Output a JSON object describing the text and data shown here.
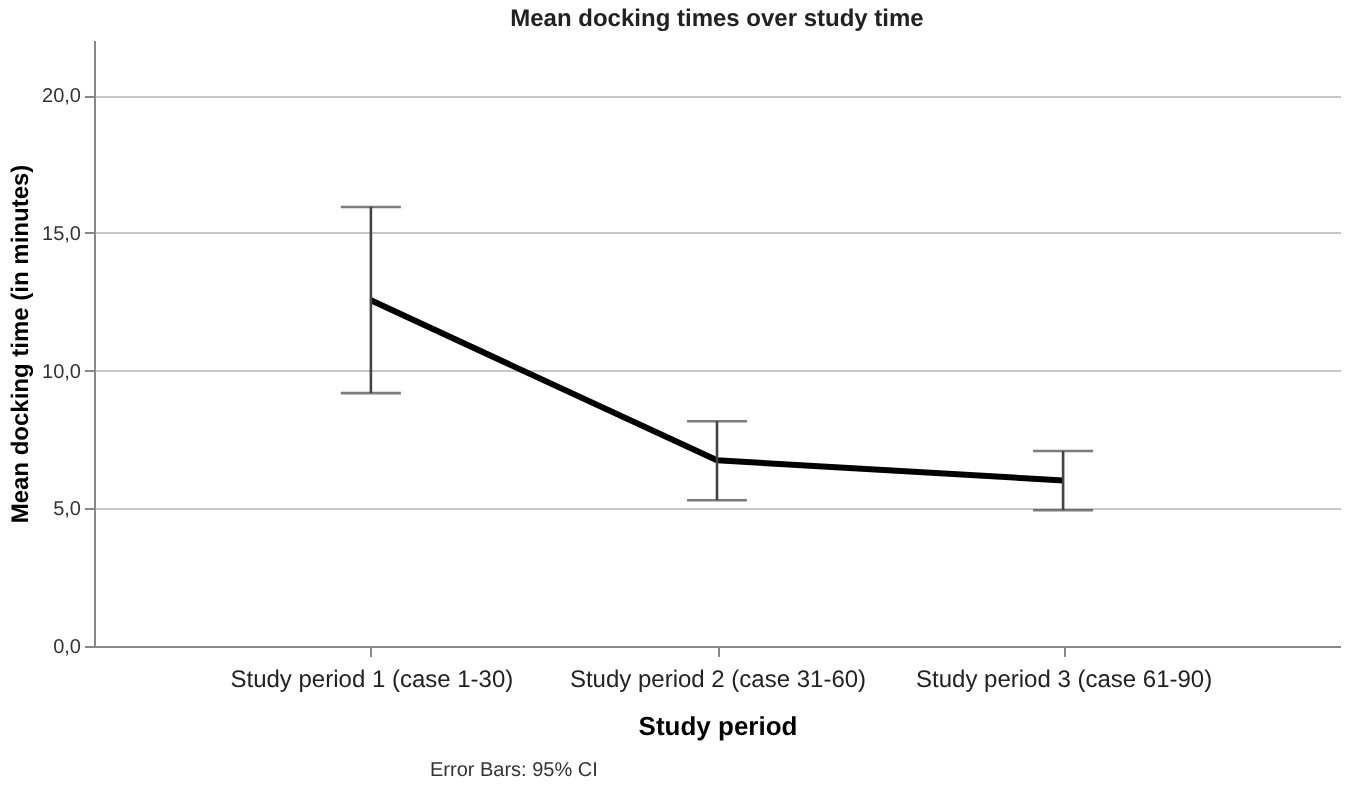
{
  "chart_data": {
    "type": "line",
    "title": "Mean docking times over study time",
    "xlabel": "Study period",
    "ylabel": "Mean docking time (in minutes)",
    "categories": [
      "Study period 1 (case 1-30)",
      "Study period 2 (case 31-60)",
      "Study period 3 (case 61-90)"
    ],
    "series": [
      {
        "color": "#000000",
        "values": [
          12.55,
          6.74,
          6.01
        ],
        "errors": [
          [
            9.18,
            15.94
          ],
          [
            5.29,
            8.16
          ],
          [
            4.93,
            7.08
          ]
        ]
      }
    ],
    "ylim": [
      0,
      22
    ],
    "yticks": [
      {
        "value": 0,
        "label": "0,0"
      },
      {
        "value": 5,
        "label": "5,0"
      },
      {
        "value": 10,
        "label": "10,0"
      },
      {
        "value": 15,
        "label": "15,0"
      },
      {
        "value": 20,
        "label": "20,0"
      }
    ],
    "grid": "y",
    "marker": "none",
    "line_style": "solid",
    "legend": false,
    "annotations": [
      "Error Bars: 95% CI"
    ]
  }
}
